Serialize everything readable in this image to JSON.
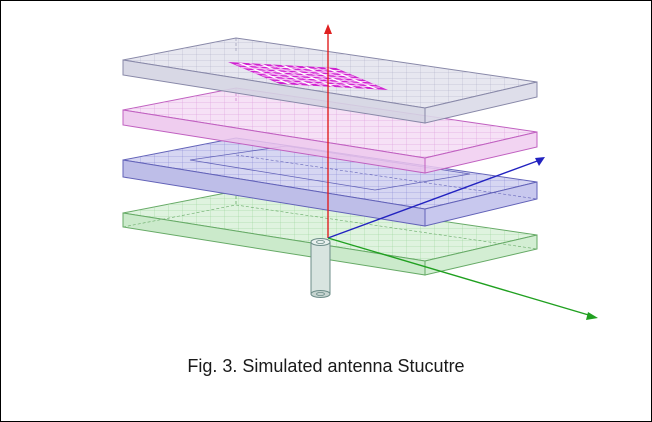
{
  "figure": {
    "caption": "Fig. 3. Simulated antenna Stucutre",
    "layer_colors": {
      "top_substrate": "#b9b9d0",
      "pink_layer": "#e8a0e8",
      "blue_layer": "#8f8fd8",
      "ground_layer": "#9fd89f",
      "patch_array": "#d020d0",
      "axis_z": "#e02020",
      "axis_x": "#2020c0",
      "axis_y": "#20a020"
    },
    "patch_array": {
      "rows": 4,
      "cols": 5
    }
  }
}
